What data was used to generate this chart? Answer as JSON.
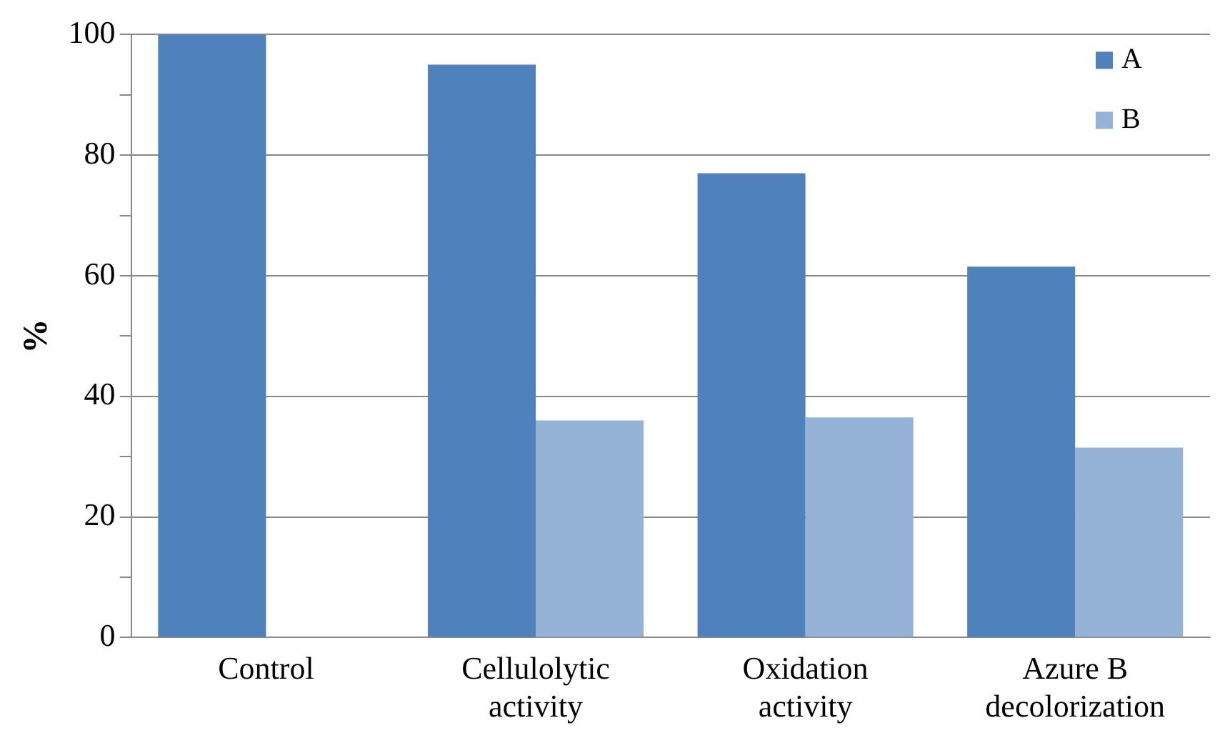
{
  "chart_data": {
    "type": "bar",
    "ylabel": "%",
    "categories": [
      "Control",
      "Cellulolytic activity",
      "Oxidation activity",
      "Azure B decolorization"
    ],
    "series": [
      {
        "name": "A",
        "color": "#4f81bd",
        "values": [
          100,
          95,
          77,
          61.5
        ]
      },
      {
        "name": "B",
        "color": "#95b3d7",
        "values": [
          null,
          36,
          36.5,
          31.5
        ]
      }
    ],
    "ylim": [
      0,
      100
    ],
    "yticks": [
      0,
      {
        "value": 10,
        "label": null
      },
      20,
      {
        "value": 30,
        "label": null
      },
      40,
      {
        "value": 50,
        "label": null
      },
      60,
      {
        "value": 70,
        "label": null
      },
      80,
      {
        "value": 90,
        "label": null
      },
      100
    ],
    "grid": "y",
    "legend": "top right"
  }
}
